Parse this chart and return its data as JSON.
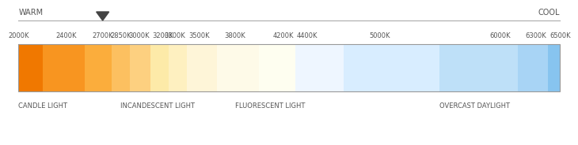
{
  "temp_labels": [
    "2000K",
    "2400K",
    "2700K",
    "2850K",
    "3000K",
    "3200K",
    "3300K",
    "3500K",
    "3800K",
    "4200K",
    "4400K",
    "5000K",
    "6000K",
    "6300K",
    "6500K"
  ],
  "temp_values": [
    2000,
    2400,
    2700,
    2850,
    3000,
    3200,
    3300,
    3500,
    3800,
    4200,
    4400,
    5000,
    6000,
    6300,
    6500
  ],
  "temp_min": 2000,
  "temp_max": 6500,
  "colors_at_temps": [
    "#F07800",
    "#F89520",
    "#FBAD3C",
    "#FCC060",
    "#FDD080",
    "#FDEAA8",
    "#FEF0C0",
    "#FEF5D8",
    "#FEFAE8",
    "#FEFEF0",
    "#EEF6FF",
    "#D8EDFF",
    "#BEE0F8",
    "#A8D4F5",
    "#87C4EF"
  ],
  "category_labels": [
    "CANDLE LIGHT",
    "INCANDESCENT LIGHT",
    "FLUORESCENT LIGHT",
    "OVERCAST DAYLIGHT"
  ],
  "category_temp_starts": [
    2000,
    2850,
    3800,
    5500
  ],
  "arrow_temp": 2700,
  "warm_label": "WARM",
  "cool_label": "COOL",
  "background_color": "#ffffff",
  "bar_border_color": "#999999",
  "text_color": "#555555",
  "tick_label_color": "#555555",
  "line_color": "#aaaaaa"
}
